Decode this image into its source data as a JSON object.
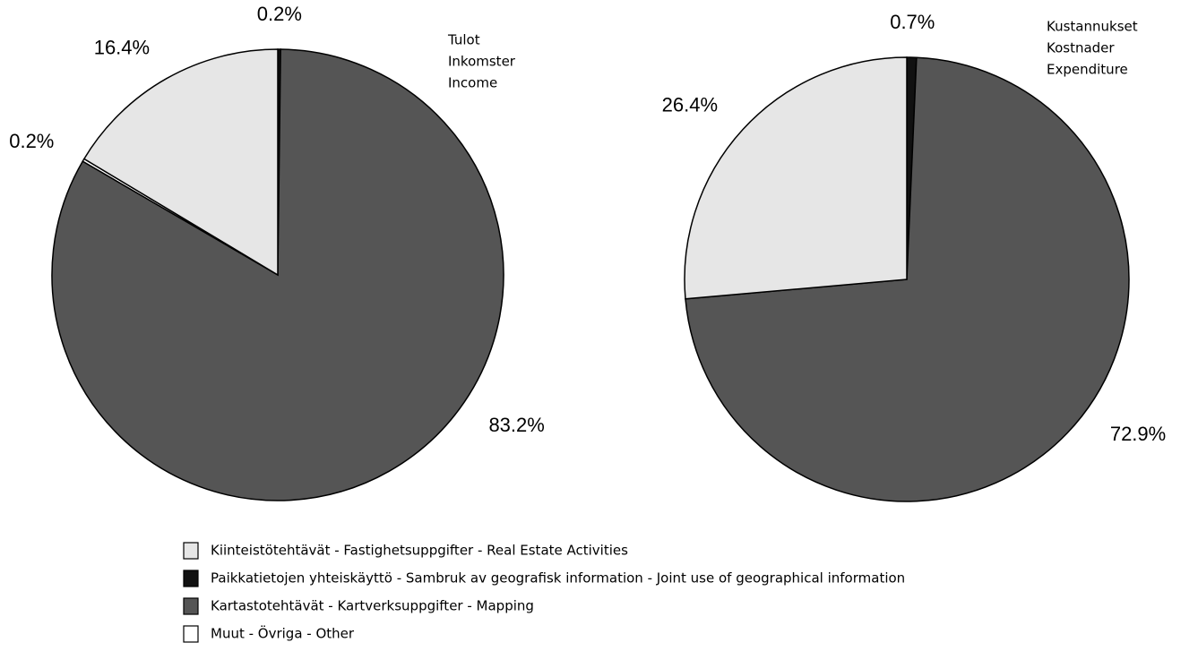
{
  "chart_data": [
    {
      "type": "pie",
      "title": [
        "Tulot",
        "Inkomster",
        "Income"
      ],
      "categories": [
        "Kiinteistötehtävät - Fastighetsuppgifter - Real Estate Activities",
        "Paikkatietojen yhteiskäyttö - Sambruk av geografisk information - Joint use of geographical information",
        "Kartastotehtävät - Kartverksuppgifter - Mapping",
        "Muut - Övriga - Other"
      ],
      "colors": [
        "#e6e6e6",
        "#111111",
        "#555555",
        "#ffffff"
      ],
      "values": [
        16.4,
        0.2,
        83.2,
        0.2
      ],
      "value_labels": [
        "16.4%",
        "0.2%",
        "83.2%",
        "0.2%"
      ]
    },
    {
      "type": "pie",
      "title": [
        "Kustannukset",
        "Kostnader",
        "Expenditure"
      ],
      "values": [
        26.4,
        0.7,
        72.9,
        null
      ],
      "value_labels": [
        "26.4%",
        "0.7%",
        "72.9%",
        null
      ]
    }
  ]
}
